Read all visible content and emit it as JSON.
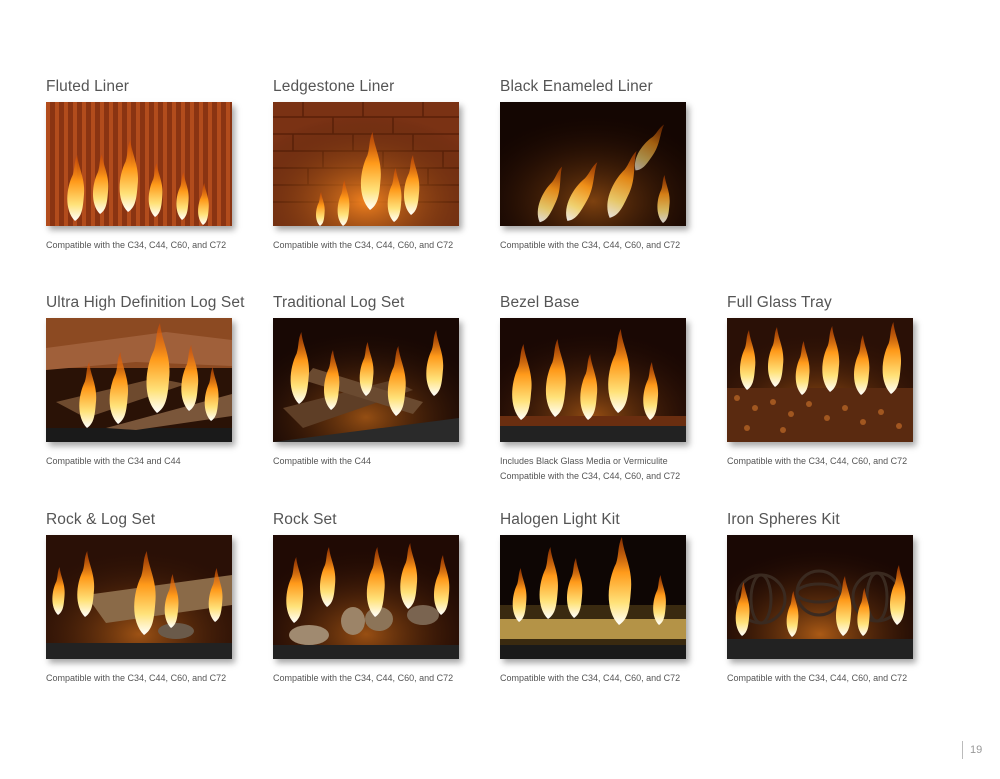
{
  "page_number": "19",
  "row1": [
    {
      "title": "Fluted Liner",
      "caption1": "Compatible with the C34, C44, C60, and C72",
      "caption2": ""
    },
    {
      "title": "Ledgestone Liner",
      "caption1": "Compatible with the C34, C44, C60, and C72",
      "caption2": ""
    },
    {
      "title": "Black Enameled Liner",
      "caption1": "Compatible with the C34, C44, C60, and C72",
      "caption2": ""
    }
  ],
  "row2": [
    {
      "title": "Ultra High Definition Log Set",
      "caption1": "Compatible with the C34 and C44",
      "caption2": ""
    },
    {
      "title": "Traditional Log Set",
      "caption1": "Compatible with the C44",
      "caption2": ""
    },
    {
      "title": "Bezel Base",
      "caption1": "Includes Black Glass Media or Vermiculite",
      "caption2": "Compatible with the C34, C44, C60, and C72"
    },
    {
      "title": "Full Glass Tray",
      "caption1": "Compatible with the C34, C44, C60, and C72",
      "caption2": ""
    }
  ],
  "row3": [
    {
      "title": "Rock & Log Set",
      "caption1": "Compatible with the C34, C44, C60, and C72",
      "caption2": ""
    },
    {
      "title": "Rock Set",
      "caption1": "Compatible with the C34, C44, C60, and C72",
      "caption2": ""
    },
    {
      "title": "Halogen Light Kit",
      "caption1": "Compatible with the C34, C44, C60, and C72",
      "caption2": ""
    },
    {
      "title": "Iron Spheres Kit",
      "caption1": "Compatible with the C34, C44, C60, and C72",
      "caption2": ""
    }
  ]
}
